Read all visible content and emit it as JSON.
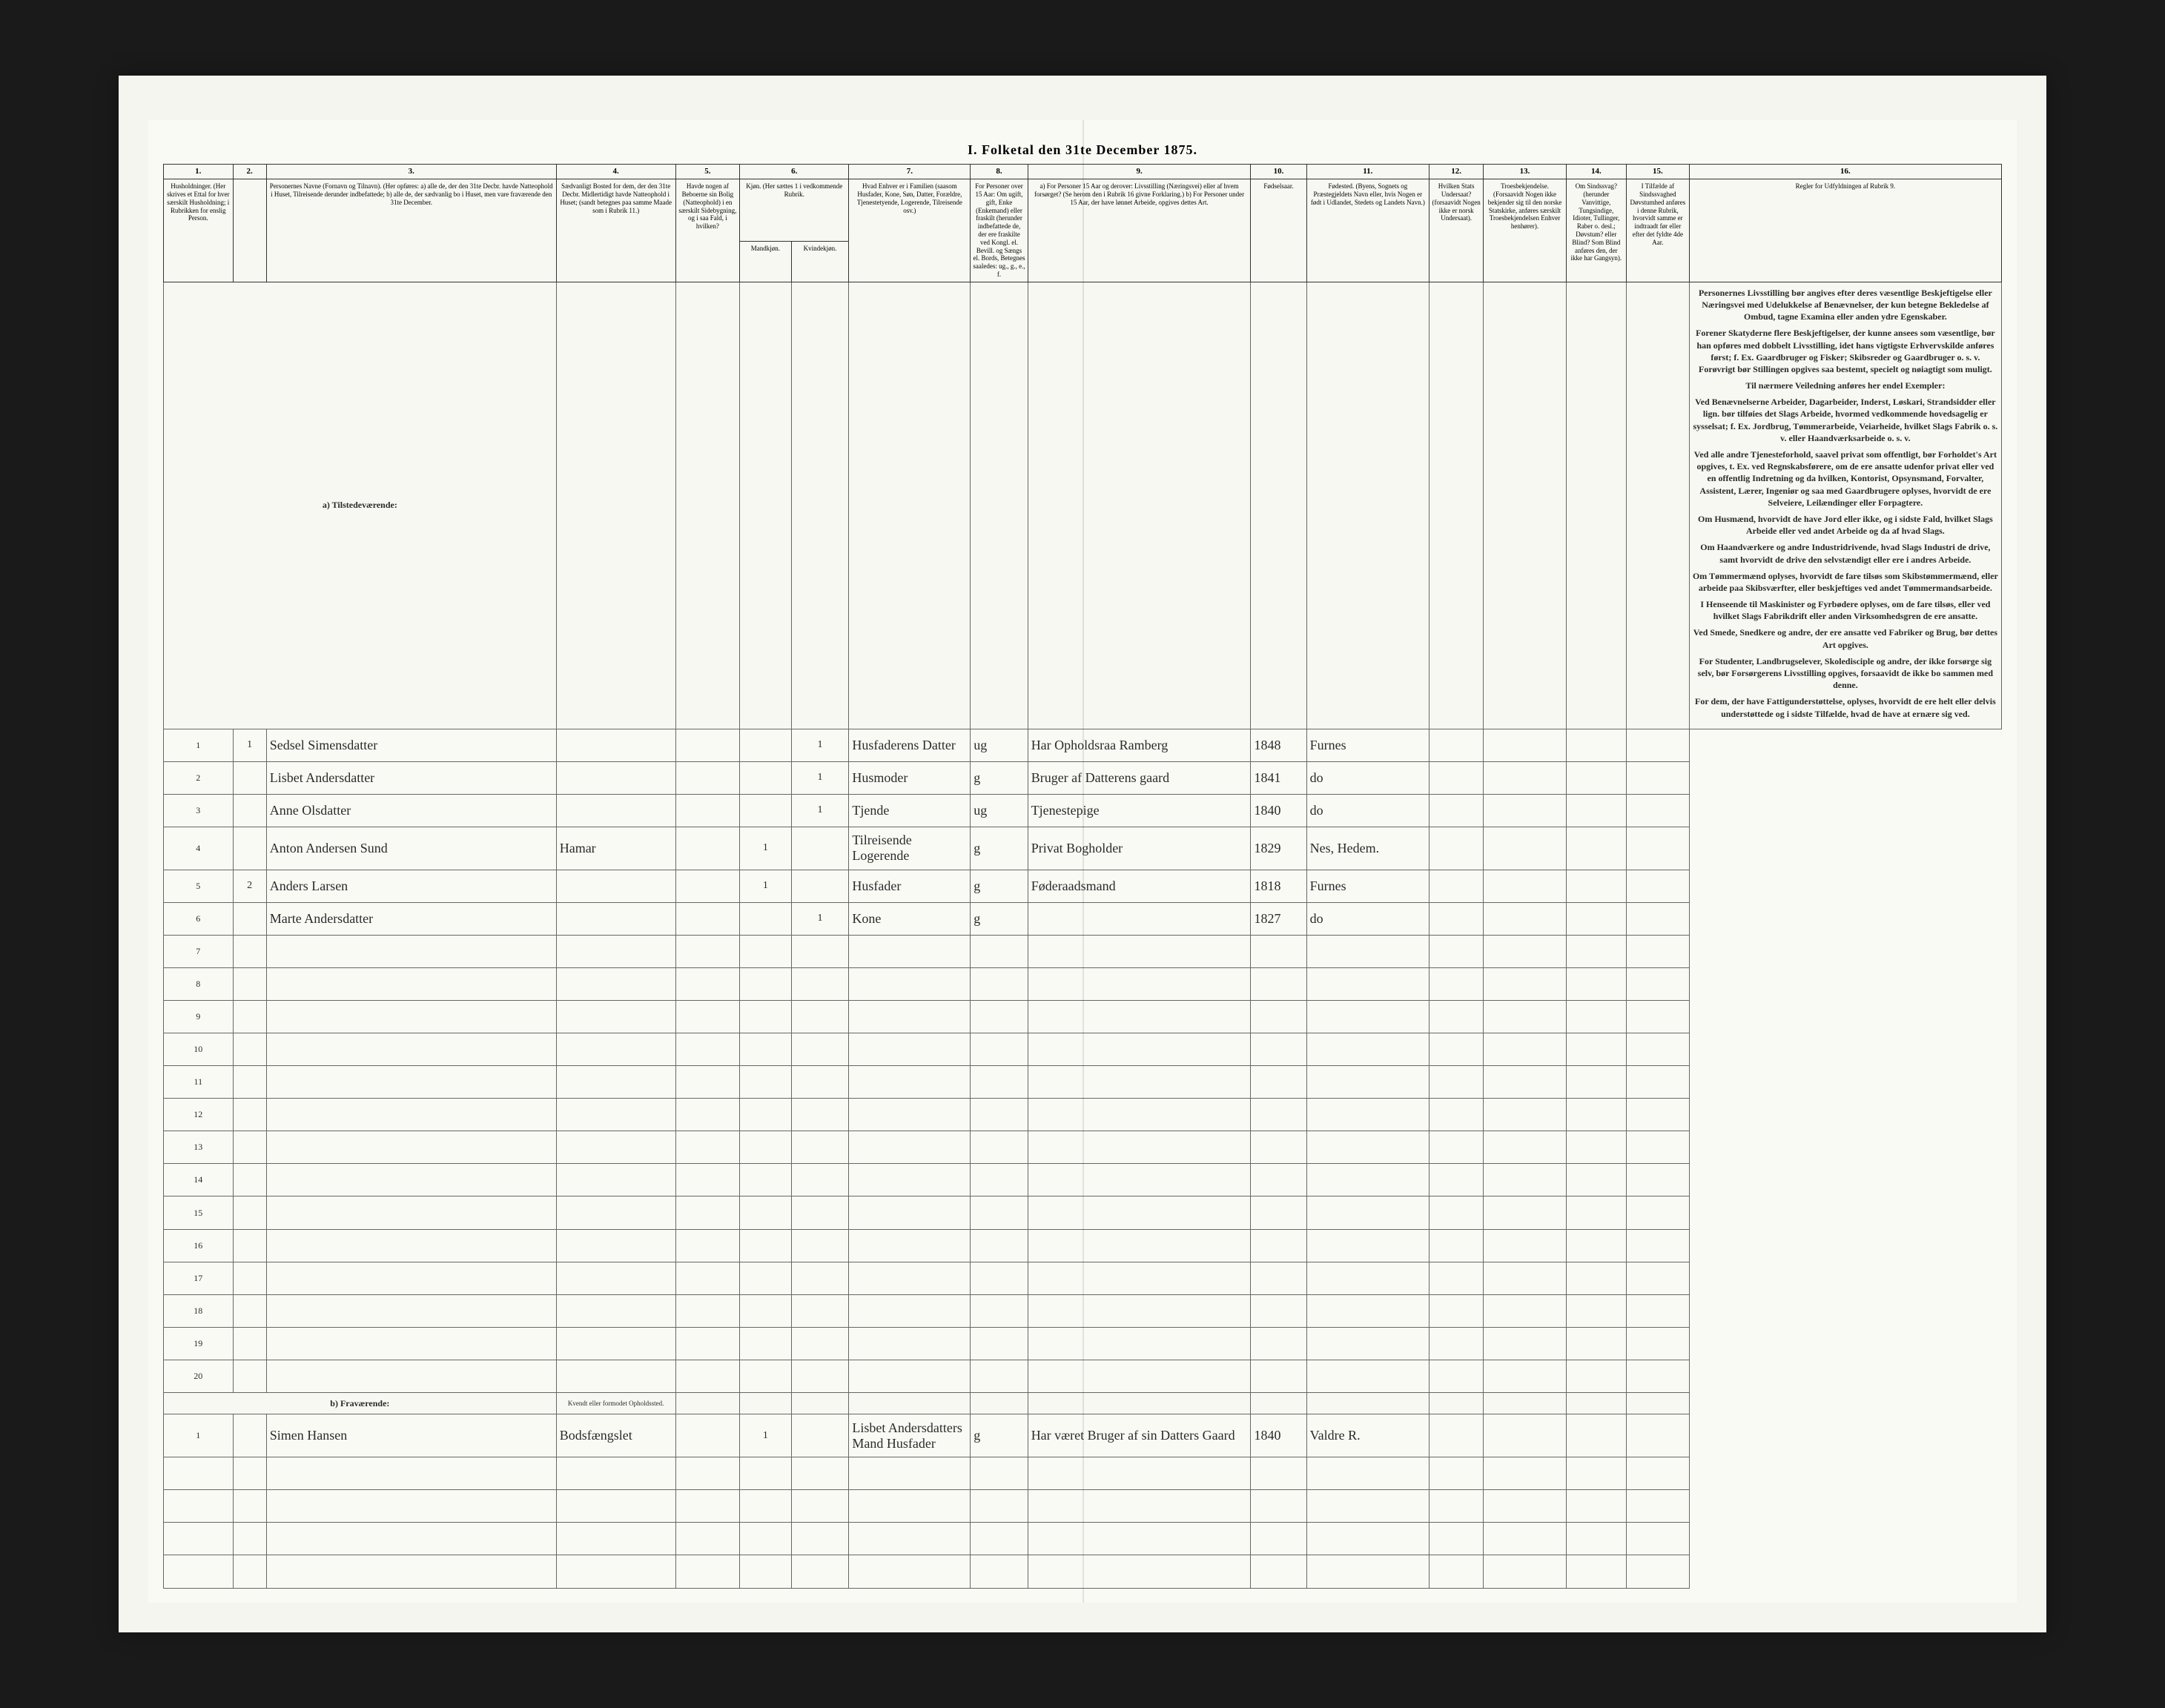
{
  "title": "I. Folketal den 31te December 1875.",
  "columns": {
    "nums": [
      "1.",
      "2.",
      "3.",
      "4.",
      "5.",
      "6.",
      "7.",
      "8.",
      "9.",
      "10.",
      "11.",
      "12.",
      "13.",
      "14.",
      "15.",
      "16."
    ],
    "h1": "Husholdninger. (Her skrives et Ettal for hver særskilt Husholdning; i Rubrikken for enslig Person.",
    "h2": "",
    "h3": "Personernes Navne (Fornavn og Tilnavn).\n(Her opføres:\na) alle de, der den 31te Decbr. havde Natteophold i Huset, Tilreisende derunder indbefattede;\nb) alle de, der sædvanlig bo i Huset, men vare fraværende den 31te December.",
    "h4": "Sædvanligt Bosted for dem, der den 31te Decbr. Midlertidigt havde Natteophold i Huset; (sandt betegnes paa samme Maade som i Rubrik 11.)",
    "h5": "Havde nogen af Beboerne sin Bolig (Natteophold) i en særskilt Sidebygning, og i saa Fald, i hvilken?",
    "h6": "Kjøn. (Her sættes 1 i vedkommende Rubrik.",
    "h6a": "Mandkjøn.",
    "h6b": "Kvindekjøn.",
    "h7": "Hvad Enhver er i Familien (saasom Husfader, Kone, Søn, Datter, Forældre, Tjenestetyende, Logerende, Tilreisende osv.)",
    "h8": "For Personer over 15 Aar: Om ugift, gift, Enke (Enkemand) eller fraskilt (herunder indbefattede de, der ere fraskilte ved Kongl. el. Bevill. og Sængs el. Bords, Betegnes saaledes: ug., g., e., f.",
    "h9": "a) For Personer 15 Aar og derover: Livsstilling (Næringsvei) eller af hvem forsørget? (Se herom den i Rubrik 16 givne Forklaring.)\nb) For Personer under 15 Aar, der have lønnet Arbeide, opgives dettes Art.",
    "h10": "Fødselsaar.",
    "h11": "Fødested.\n(Byens, Sognets og Præstegjeldets Navn eller, hvis Nogen er født i Udlandet, Stedets og Landets Navn.)",
    "h12": "Hvilken Stats Undersaat? (forsaavidt Nogen ikke er norsk Undersaat).",
    "h13": "Troesbekjendelse. (Forsaavidt Nogen ikke bekjender sig til den norske Statskirke, anføres særskilt Troesbekjendelsen Enhver henhører).",
    "h14": "Om Sindssvag? (herunder Vanvittige, Tungsindige, Idioter, Tullinger, Raber o. desl.; Døvstum? eller Blind? Som Blind anføres den, der ikke har Gangsyn).",
    "h15": "I Tilfælde af Sindssvaghed Døvstumhed anføres i denne Rubrik, hvorvidt samme er indtraadt før eller efter det fyldte 4de Aar.",
    "h16": "Regler for Udfyldningen af Rubrik 9."
  },
  "sections": {
    "present": "a) Tilstedeværende:",
    "absent": "b) Fraværende:",
    "absent_col4": "Kvendt eller formodet Opholdssted."
  },
  "rows": [
    {
      "n": "1",
      "sub": "1",
      "name": "Sedsel Simensdatter",
      "c4": "",
      "c5": "",
      "sex_m": "",
      "sex_f": "1",
      "role": "Husfaderens Datter",
      "status": "ug",
      "occupation": "Har Opholdsraa Ramberg",
      "year": "1848",
      "place": "Furnes"
    },
    {
      "n": "2",
      "sub": "",
      "name": "Lisbet Andersdatter",
      "c4": "",
      "c5": "",
      "sex_m": "",
      "sex_f": "1",
      "role": "Husmoder",
      "status": "g",
      "occupation": "Bruger af Datterens gaard",
      "year": "1841",
      "place": "do"
    },
    {
      "n": "3",
      "sub": "",
      "name": "Anne Olsdatter",
      "c4": "",
      "c5": "",
      "sex_m": "",
      "sex_f": "1",
      "role": "Tjende",
      "status": "ug",
      "occupation": "Tjenestepige",
      "year": "1840",
      "place": "do"
    },
    {
      "n": "4",
      "sub": "",
      "name": "Anton Andersen Sund",
      "c4": "Hamar",
      "c5": "",
      "sex_m": "1",
      "sex_f": "",
      "role": "Tilreisende Logerende",
      "status": "g",
      "occupation": "Privat Bogholder",
      "year": "1829",
      "place": "Nes, Hedem."
    },
    {
      "n": "5",
      "sub": "2",
      "name": "Anders Larsen",
      "c4": "",
      "c5": "",
      "sex_m": "1",
      "sex_f": "",
      "role": "Husfader",
      "status": "g",
      "occupation": "Føderaadsmand",
      "year": "1818",
      "place": "Furnes"
    },
    {
      "n": "6",
      "sub": "",
      "name": "Marte Andersdatter",
      "c4": "",
      "c5": "",
      "sex_m": "",
      "sex_f": "1",
      "role": "Kone",
      "status": "g",
      "occupation": "",
      "year": "1827",
      "place": "do"
    },
    {
      "n": "7"
    },
    {
      "n": "8"
    },
    {
      "n": "9"
    },
    {
      "n": "10"
    },
    {
      "n": "11"
    },
    {
      "n": "12"
    },
    {
      "n": "13"
    },
    {
      "n": "14"
    },
    {
      "n": "15"
    },
    {
      "n": "16"
    },
    {
      "n": "17"
    },
    {
      "n": "18"
    },
    {
      "n": "19"
    },
    {
      "n": "20"
    }
  ],
  "absent_rows": [
    {
      "n": "1",
      "name": "Simen Hansen",
      "c4": "Bodsfængslet",
      "sex_m": "1",
      "sex_f": "",
      "role": "Lisbet Andersdatters Mand Husfader",
      "status": "g",
      "occupation": "Har været Bruger af sin Datters Gaard",
      "year": "1840",
      "place": "Valdre R."
    },
    {
      "n": ""
    },
    {
      "n": ""
    },
    {
      "n": ""
    },
    {
      "n": ""
    }
  ],
  "instructions": {
    "heading": "Regler for Udfyldningen af Rubrik 9.",
    "paragraphs": [
      "Personernes Livsstilling bør angives efter deres væsentlige Beskjeftigelse eller Næringsvei med Udelukkelse af Benævnelser, der kun betegne Bekledelse af Ombud, tagne Examina eller anden ydre Egenskaber.",
      "Forener Skatyderne flere Beskjeftigelser, der kunne ansees som væsentlige, bør han opføres med dobbelt Livsstilling, idet hans vigtigste Erhvervskilde anføres først; f. Ex. Gaardbruger og Fisker; Skibsreder og Gaardbruger o. s. v. Forøvrigt bør Stillingen opgives saa bestemt, specielt og nøiagtigt som muligt.",
      "Til nærmere Veiledning anføres her endel Exempler:",
      "Ved Benævnelserne Arbeider, Dagarbeider, Inderst, Løskari, Strandsidder eller lign. bør tilføies det Slags Arbeide, hvormed vedkommende hovedsagelig er sysselsat; f. Ex. Jordbrug, Tømmerarbeide, Veiarheide, hvilket Slags Fabrik o. s. v. eller Haandværksarbeide o. s. v.",
      "Ved alle andre Tjenesteforhold, saavel privat som offentligt, bør Forholdet's Art opgives, t. Ex. ved Regnskabsførere, om de ere ansatte udenfor privat eller ved en offentlig Indretning og da hvilken, Kontorist, Opsynsmand, Forvalter, Assistent, Lærer, Ingeniør og saa med Gaardbrugere oplyses, hvorvidt de ere Selveiere, Leilændinger eller Forpagtere.",
      "Om Husmænd, hvorvidt de have Jord eller ikke, og i sidste Fald, hvilket Slags Arbeide eller ved andet Arbeide og da af hvad Slags.",
      "Om Haandværkere og andre Industridrivende, hvad Slags Industri de drive, samt hvorvidt de drive den selvstændigt eller ere i andres Arbeide.",
      "Om Tømmermænd oplyses, hvorvidt de fare tilsøs som Skibstømmermænd, eller arbeide paa Skibsværfter, eller beskjeftiges ved andet Tømmermandsarbeide.",
      "I Henseende til Maskinister og Fyrbødere oplyses, om de fare tilsøs, eller ved hvilket Slags Fabrikdrift eller anden Virksomhedsgren de ere ansatte.",
      "Ved Smede, Snedkere og andre, der ere ansatte ved Fabriker og Brug, bør dettes Art opgives.",
      "For Studenter, Landbrugselever, Skoledisciple og andre, der ikke forsørge sig selv, bør Forsørgerens Livsstilling opgives, forsaavidt de ikke bo sammen med denne.",
      "For dem, der have Fattigunderstøttelse, oplyses, hvorvidt de ere helt eller delvis understøttede og i sidste Tilfælde, hvad de have at ernære sig ved."
    ]
  },
  "colors": {
    "page_bg": "#fafaf5",
    "frame_bg": "#f5f5f0",
    "outer_bg": "#1a1a1a",
    "border": "#333333",
    "ink": "#2a2a2a"
  }
}
